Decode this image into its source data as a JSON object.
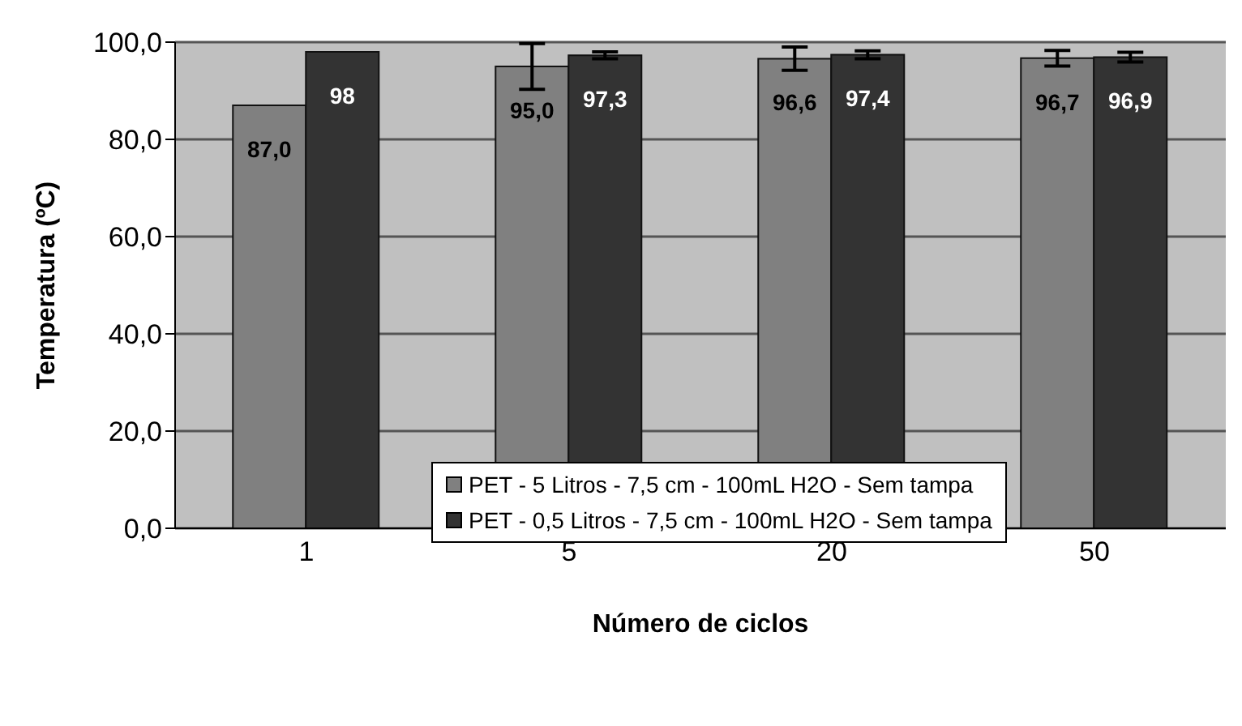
{
  "chart_data": {
    "type": "bar",
    "xlabel": "Número de ciclos",
    "ylabel": "Temperatura (ºC)",
    "categories": [
      "1",
      "5",
      "20",
      "50"
    ],
    "series": [
      {
        "name": "PET - 5 Litros - 7,5 cm - 100mL H2O - Sem tampa",
        "color": "#808080",
        "values": [
          87.0,
          95.0,
          96.6,
          96.7
        ],
        "errors": [
          null,
          4.7,
          2.4,
          1.6
        ],
        "value_labels": [
          "87,0",
          "95,0",
          "96,6",
          "96,7"
        ]
      },
      {
        "name": "PET - 0,5 Litros - 7,5 cm - 100mL H2O - Sem tampa",
        "color": "#333333",
        "values": [
          98,
          97.3,
          97.4,
          96.9
        ],
        "errors": [
          null,
          0.7,
          0.8,
          1.0
        ],
        "value_labels": [
          "98",
          "97,3",
          "97,4",
          "96,9"
        ]
      }
    ],
    "ylim": [
      0,
      100
    ],
    "yticks": [
      {
        "value": 0,
        "label": "0,0"
      },
      {
        "value": 20,
        "label": "20,0"
      },
      {
        "value": 40,
        "label": "40,0"
      },
      {
        "value": 60,
        "label": "60,0"
      },
      {
        "value": 80,
        "label": "80,0"
      },
      {
        "value": 100,
        "label": "100,0"
      }
    ],
    "grid": "y",
    "legend": "bottom right"
  }
}
